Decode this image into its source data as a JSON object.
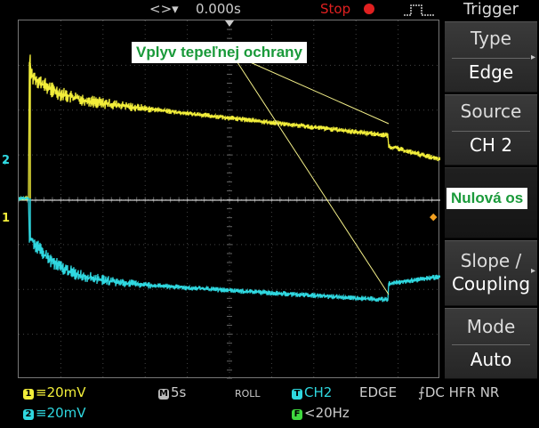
{
  "top": {
    "time_offset": "0.000s",
    "time_arrows": "<>▾",
    "run_state": "Stop",
    "trigger_icon": "trigger-edge-icon"
  },
  "menu": {
    "title": "Trigger",
    "type_label": "Type",
    "type_value": "Edge",
    "source_label": "Source",
    "source_value": "CH 2",
    "slope_label": "Slope /",
    "slope_value": "Coupling",
    "mode_label": "Mode",
    "mode_value": "Auto"
  },
  "bottom": {
    "ch1_num": "1",
    "ch1_scale": "≡20mV",
    "ch2_num": "2",
    "ch2_scale": "≡20mV",
    "time_badge": "M",
    "timebase": "5s",
    "roll": "ROLL",
    "trig_badge": "T",
    "trig_source": "CH2",
    "trig_type": "EDGE",
    "trig_coupling": "⨍DC HFR NR",
    "filter_badge": "F",
    "filter": "<20Hz"
  },
  "markers": {
    "ch2": "2",
    "ch1": "1"
  },
  "annotations": {
    "thermal": "Vplyv tepeľnej ochrany",
    "zero_axis": "Nulová os"
  },
  "colors": {
    "ch1": "#f2ee3a",
    "ch2": "#2fd8e0",
    "grid": "#555555",
    "stop": "#e02020",
    "annotation_text": "#1a9a3a"
  }
}
